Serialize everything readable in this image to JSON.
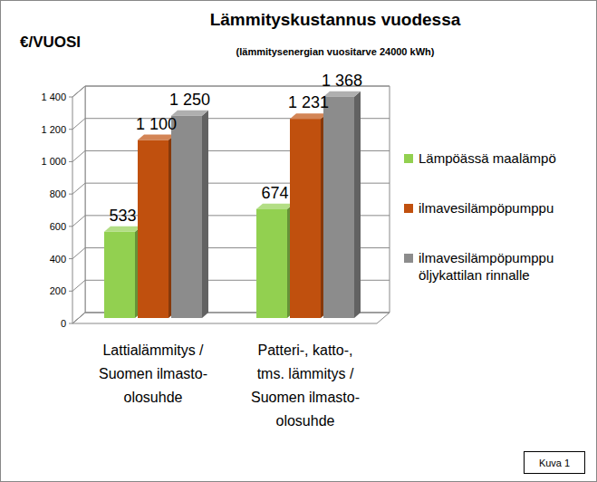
{
  "chart_data": {
    "type": "bar",
    "title": "Lämmityskustannus vuodessa",
    "subtitle": "(lämmitysenergian vuositarve 24000 kWh)",
    "y_label": "€/VUOSI",
    "categories": [
      "Lattialämmitys /\nSuomen ilmasto-\nolosuhde",
      "Patteri-, katto-,\ntms. lämmitys /\nSuomen ilmasto-\nolosuhde"
    ],
    "series": [
      {
        "name": "Lämpöässä maalämpö",
        "color": "#92d050",
        "values": [
          533,
          674
        ],
        "value_labels": [
          "533",
          "674"
        ]
      },
      {
        "name": "ilmavesilämpöpumppu",
        "color": "#c0500e",
        "values": [
          1100,
          1231
        ],
        "value_labels": [
          "1 100",
          "1 231"
        ]
      },
      {
        "name": "ilmavesilämpöpumppu öljykattilan rinnalle",
        "color": "#8c8c8c",
        "values": [
          1250,
          1368
        ],
        "value_labels": [
          "1 250",
          "1 368"
        ]
      }
    ],
    "ylim": [
      0,
      1400
    ],
    "yticks": [
      0,
      200,
      400,
      600,
      800,
      {
        "value": 1000,
        "label": "1 000"
      },
      {
        "value": 1200,
        "label": "1 200"
      },
      {
        "value": 1400,
        "label": "1 400"
      }
    ],
    "grid": true,
    "legend": "right",
    "data_labels": true,
    "annotation": "Kuva 1"
  }
}
